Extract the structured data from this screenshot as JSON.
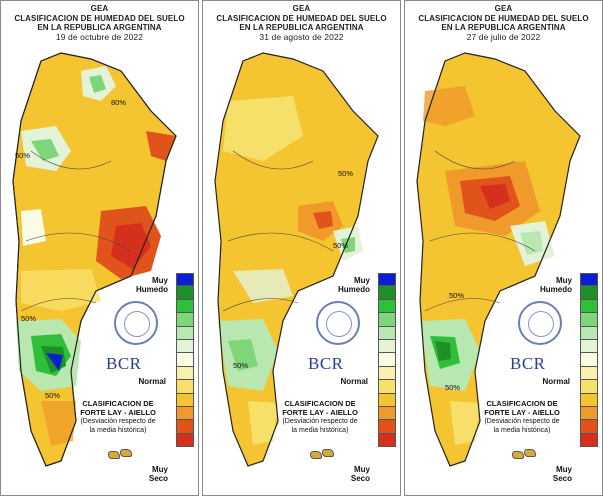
{
  "legend": {
    "top_label": "Muy\nHumedo",
    "mid_label": "Normal",
    "bottom_label": "Muy\nSeco",
    "colors": [
      "#0a1fd2",
      "#1f8f2a",
      "#2fbf3a",
      "#7fd67a",
      "#b9e7b0",
      "#e3f3d8",
      "#fbfbe6",
      "#f7f1b0",
      "#f7e06a",
      "#f5c431",
      "#ef9a2a",
      "#e0541c",
      "#d4301c"
    ]
  },
  "logo": {
    "text": "BCR"
  },
  "method": {
    "line1": "CLASIFICACION DE",
    "line2": "FORTE LAY - AIELLO",
    "line3": "(Desviación respecto de",
    "line4": "la media histórica)"
  },
  "panels": [
    {
      "title1": "GEA",
      "title2": "CLASIFICACION DE HUMEDAD DEL SUELO",
      "title3": "EN LA REPUBLICA ARGENTINA",
      "date": "19 de octubre de 2022",
      "contour_labels": [
        "50%",
        "50%",
        "50%",
        "80%"
      ]
    },
    {
      "title1": "GEA",
      "title2": "CLASIFICACION DE HUMEDAD DEL SUELO",
      "title3": "EN LA REPUBLICA ARGENTINA",
      "date": "31 de agosto de 2022",
      "contour_labels": [
        "50%",
        "50%",
        "50%"
      ]
    },
    {
      "title1": "GEA",
      "title2": "CLASIFICACION DE HUMEDAD DEL SUELO",
      "title3": "EN LA REPUBLICA ARGENTINA",
      "date": "27 de julio de 2022",
      "contour_labels": [
        "50%",
        "50%"
      ]
    }
  ]
}
